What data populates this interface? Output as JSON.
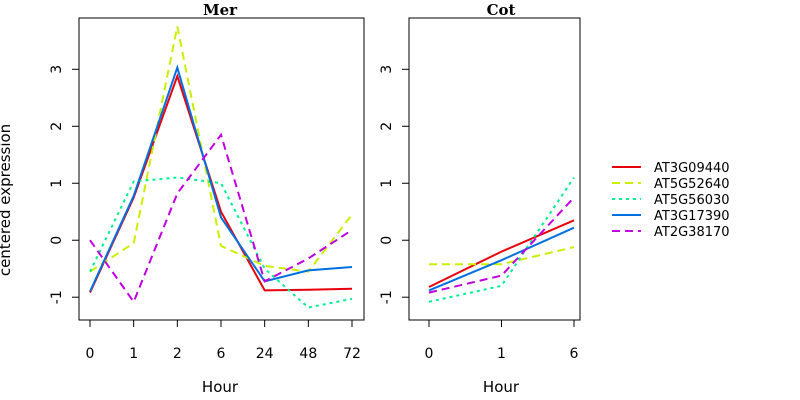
{
  "y_axis_label": "centered expression",
  "chart_data": [
    {
      "type": "line",
      "title": "Mer",
      "xlabel": "Hour",
      "ylabel": "centered expression",
      "categories": [
        "0",
        "1",
        "2",
        "6",
        "24",
        "48",
        "72"
      ],
      "ylim": [
        -1.4,
        3.9
      ],
      "yticks": [
        -1,
        0,
        1,
        2,
        3
      ],
      "series": [
        {
          "name": "AT3G09440",
          "values": [
            -0.92,
            0.75,
            2.88,
            0.5,
            -0.88,
            -0.87,
            -0.85
          ]
        },
        {
          "name": "AT5G52640",
          "values": [
            -0.55,
            -0.05,
            3.75,
            -0.1,
            -0.45,
            -0.55,
            0.45
          ]
        },
        {
          "name": "AT5G56030",
          "values": [
            -0.55,
            1.03,
            1.1,
            1.0,
            -0.5,
            -1.18,
            -1.03
          ]
        },
        {
          "name": "AT3G17390",
          "values": [
            -0.9,
            0.78,
            3.03,
            0.4,
            -0.72,
            -0.53,
            -0.47
          ]
        },
        {
          "name": "AT2G38170",
          "values": [
            0.0,
            -1.08,
            0.82,
            1.85,
            -0.72,
            -0.32,
            0.18
          ]
        }
      ]
    },
    {
      "type": "line",
      "title": "Cot",
      "xlabel": "Hour",
      "ylabel": "",
      "categories": [
        "0",
        "1",
        "6"
      ],
      "ylim": [
        -1.4,
        3.9
      ],
      "yticks": [
        -1,
        0,
        1,
        2,
        3
      ],
      "series": [
        {
          "name": "AT3G09440",
          "values": [
            -0.82,
            -0.2,
            0.35
          ]
        },
        {
          "name": "AT5G52640",
          "values": [
            -0.42,
            -0.42,
            -0.12
          ]
        },
        {
          "name": "AT5G56030",
          "values": [
            -1.08,
            -0.8,
            1.1
          ]
        },
        {
          "name": "AT3G17390",
          "values": [
            -0.88,
            -0.35,
            0.22
          ]
        },
        {
          "name": "AT2G38170",
          "values": [
            -0.92,
            -0.62,
            0.75
          ]
        }
      ]
    }
  ],
  "legend": {
    "placement": "right",
    "entries": [
      {
        "name": "AT3G09440",
        "color": "#e8000b",
        "dash": "solid"
      },
      {
        "name": "AT5G52640",
        "color": "#c8f000",
        "dash": "dashed"
      },
      {
        "name": "AT5G56030",
        "color": "#00f090",
        "dash": "dotted"
      },
      {
        "name": "AT3G17390",
        "color": "#0070e0",
        "dash": "solid"
      },
      {
        "name": "AT2G38170",
        "color": "#c000e0",
        "dash": "dashed"
      }
    ]
  }
}
